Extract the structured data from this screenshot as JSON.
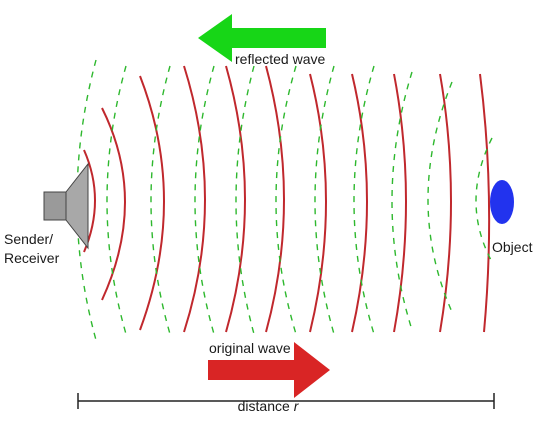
{
  "labels": {
    "reflected_wave": "reflected wave",
    "original_wave": "original wave",
    "sender_line1": "Sender/",
    "sender_line2": "Receiver",
    "object": "Object",
    "distance_text": "distance",
    "distance_var": "r"
  },
  "colors": {
    "original_wave": "#c0282d",
    "reflected_wave": "#2eb82e",
    "reflected_arrow": "#17d617",
    "original_arrow": "#d92525",
    "object": "#2233ee",
    "speaker": "#999999"
  }
}
